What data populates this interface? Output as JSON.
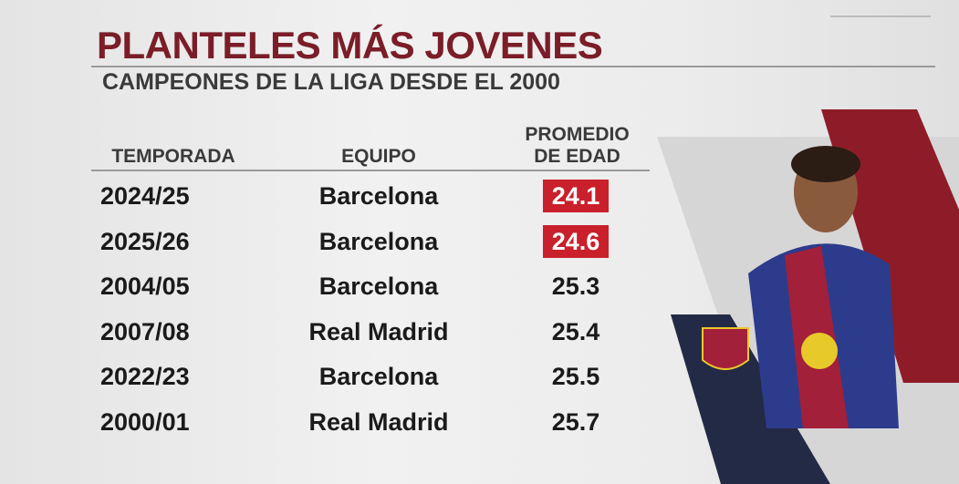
{
  "header": {
    "title": "PLANTELES MÁS JOVENES",
    "subtitle": "CAMPEONES DE LA LIGA DESDE EL 2000"
  },
  "table": {
    "columns": [
      "TEMPORADA",
      "EQUIPO",
      "PROMEDIO DE EDAD"
    ],
    "rows": [
      {
        "season": "2024/25",
        "team": "Barcelona",
        "age": "24.1",
        "highlight": true
      },
      {
        "season": "2025/26",
        "team": "Barcelona",
        "age": "24.6",
        "highlight": true
      },
      {
        "season": "2004/05",
        "team": "Barcelona",
        "age": "25.3",
        "highlight": false
      },
      {
        "season": "2007/08",
        "team": "Real Madrid",
        "age": "25.4",
        "highlight": false
      },
      {
        "season": "2022/23",
        "team": "Barcelona",
        "age": "25.5",
        "highlight": false
      },
      {
        "season": "2000/01",
        "team": "Real Madrid",
        "age": "25.7",
        "highlight": false
      }
    ]
  }
}
